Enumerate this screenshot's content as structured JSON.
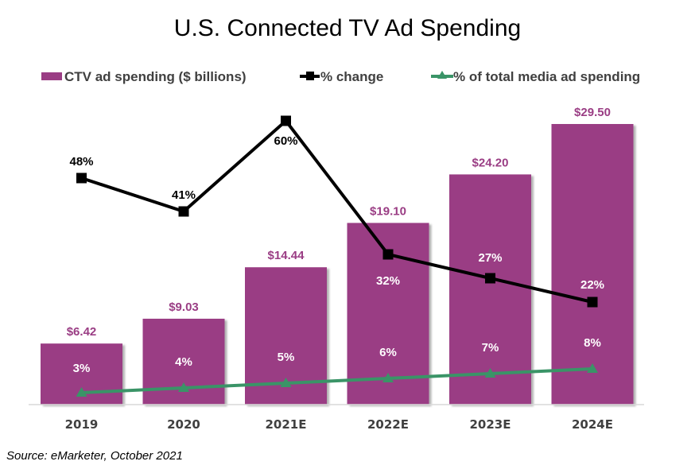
{
  "chart_data": {
    "type": "bar",
    "title": "U.S. Connected  TV Ad Spending",
    "categories": [
      "2019",
      "2020",
      "2021E",
      "2022E",
      "2023E",
      "2024E"
    ],
    "series": [
      {
        "name": "CTV ad spending ($ billions)",
        "kind": "bar",
        "color": "#9A3D84",
        "values": [
          6.42,
          9.03,
          14.44,
          19.1,
          24.2,
          29.5
        ],
        "labels": [
          "$6.42",
          "$9.03",
          "$14.44",
          "$19.10",
          "$24.20",
          "$29.50"
        ],
        "label_color": "#9A3D84"
      },
      {
        "name": "% change",
        "kind": "line",
        "marker": "square",
        "color": "#000000",
        "values": [
          48,
          41,
          60,
          32,
          27,
          22
        ],
        "labels": [
          "48%",
          "41%",
          "60%",
          "32%",
          "27%",
          "22%"
        ]
      },
      {
        "name": "% of total media ad spending",
        "kind": "line",
        "marker": "triangle",
        "color": "#3A9467",
        "values": [
          3,
          4,
          5,
          6,
          7,
          8
        ],
        "labels": [
          "3%",
          "4%",
          "5%",
          "6%",
          "7%",
          "8%"
        ]
      }
    ],
    "xlabel": "",
    "ylabel": "",
    "ylim": [
      0,
      29.5
    ],
    "secondary_ylim": [
      0,
      60
    ],
    "grid": false,
    "legend_position": "top",
    "source": "Source: eMarketer, October 2021"
  }
}
